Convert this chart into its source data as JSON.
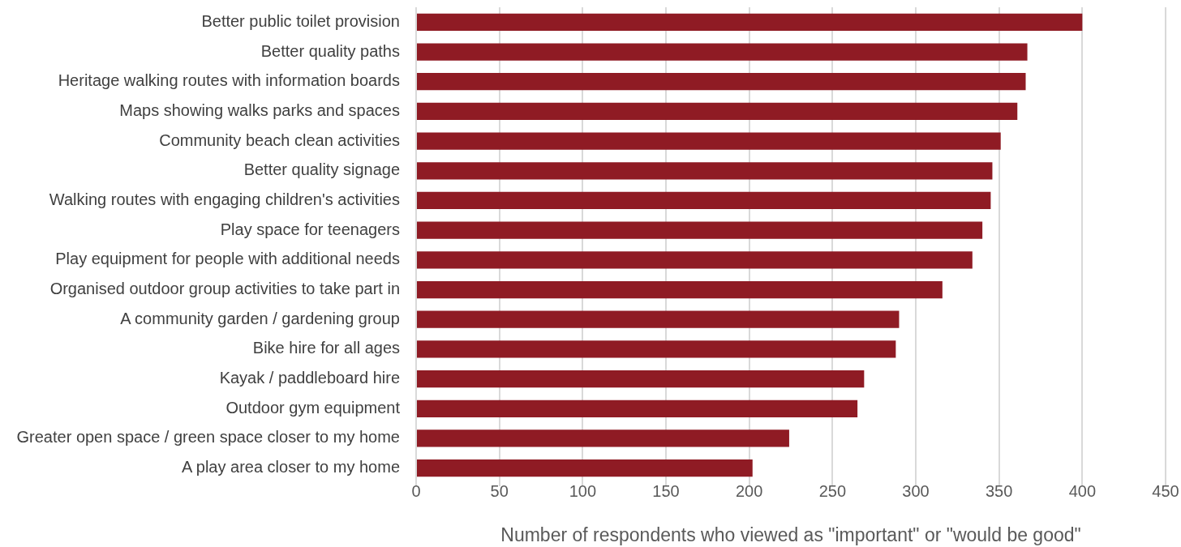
{
  "chart_data": {
    "type": "bar",
    "orientation": "horizontal",
    "xlabel": "Number of respondents who viewed as \"important\" or \"would be good\"",
    "categories": [
      "Better public toilet provision",
      "Better quality paths",
      "Heritage walking routes with information boards",
      "Maps showing walks parks and spaces",
      "Community beach clean activities",
      "Better quality signage",
      "Walking routes with engaging children's activities",
      "Play space for teenagers",
      "Play equipment for people with additional needs",
      "Organised outdoor group activities to take part in",
      "A community garden / gardening group",
      "Bike hire for all ages",
      "Kayak / paddleboard hire",
      "Outdoor gym equipment",
      "Greater open space / green space closer to my home",
      "A play area closer to my home"
    ],
    "values": [
      400,
      367,
      366,
      361,
      351,
      346,
      345,
      340,
      334,
      316,
      290,
      288,
      269,
      265,
      224,
      202
    ],
    "color": "#8f1b24",
    "xlim": [
      0,
      450
    ],
    "xticks": [
      0,
      50,
      100,
      150,
      200,
      250,
      300,
      350,
      400,
      450
    ],
    "grid": "x",
    "legend": false
  }
}
